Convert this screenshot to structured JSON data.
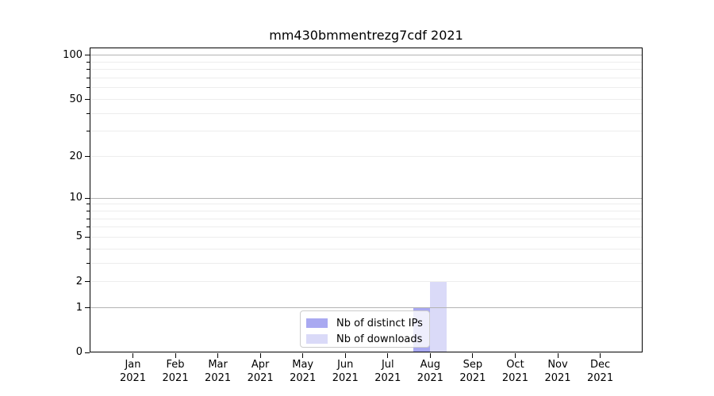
{
  "chart_data": {
    "type": "bar",
    "title": "mm430bmmentrezg7cdf 2021",
    "x_months": [
      "Jan",
      "Feb",
      "Mar",
      "Apr",
      "May",
      "Jun",
      "Jul",
      "Aug",
      "Sep",
      "Oct",
      "Nov",
      "Dec"
    ],
    "x_year": "2021",
    "series": [
      {
        "name": "Nb of distinct IPs",
        "color": "#a9a9f1",
        "values": [
          0,
          0,
          0,
          0,
          0,
          0,
          0,
          1,
          0,
          0,
          0,
          0
        ]
      },
      {
        "name": "Nb of downloads",
        "color": "#dadaf8",
        "values": [
          0,
          0,
          0,
          0,
          0,
          0,
          0,
          2,
          0,
          0,
          0,
          0
        ]
      }
    ],
    "y_scale": "log10(1+x)",
    "ylim": [
      0,
      113
    ],
    "y_ticks_major": [
      0,
      1,
      2,
      5,
      10,
      20,
      50,
      100
    ],
    "y_ticks_minor": [
      3,
      4,
      6,
      7,
      8,
      9,
      30,
      40,
      60,
      70,
      80,
      90
    ],
    "grid_major": [
      1,
      10,
      100
    ],
    "grid_minor": [
      2,
      3,
      4,
      5,
      6,
      7,
      8,
      9,
      20,
      30,
      40,
      50,
      60,
      70,
      80,
      90
    ],
    "legend_position": "lower center",
    "colors": {
      "grid_major": "#b3b3b3",
      "grid_minor": "#ededed",
      "axis": "#000000",
      "legend_border": "#cccccc",
      "background": "#ffffff"
    }
  }
}
